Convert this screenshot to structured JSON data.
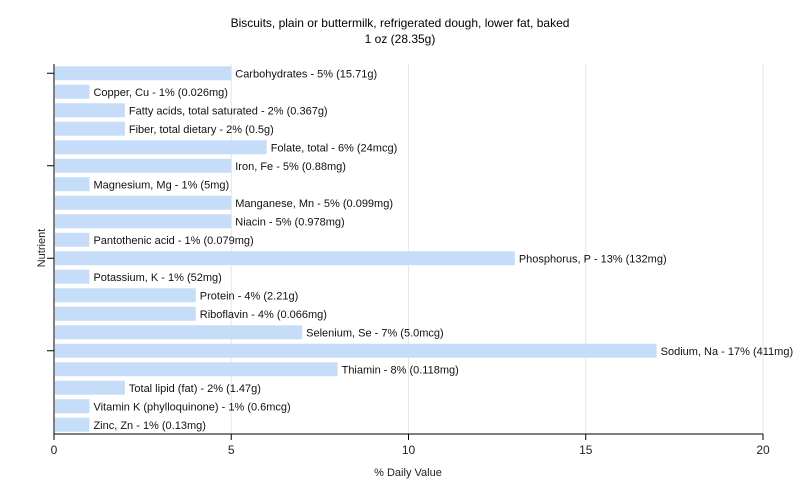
{
  "chart_data": {
    "type": "bar",
    "orientation": "horizontal",
    "title": "Biscuits, plain or buttermilk, refrigerated dough, lower fat, baked",
    "subtitle": "1 oz (28.35g)",
    "xlabel": "% Daily Value",
    "ylabel": "Nutrient",
    "xlim": [
      0,
      20
    ],
    "xticks": [
      0,
      5,
      10,
      15,
      20
    ],
    "grid": true,
    "bar_color": "#c6ddfa",
    "categories": [
      "Carbohydrates",
      "Copper, Cu",
      "Fatty acids, total saturated",
      "Fiber, total dietary",
      "Folate, total",
      "Iron, Fe",
      "Magnesium, Mg",
      "Manganese, Mn",
      "Niacin",
      "Pantothenic acid",
      "Phosphorus, P",
      "Potassium, K",
      "Protein",
      "Riboflavin",
      "Selenium, Se",
      "Sodium, Na",
      "Thiamin",
      "Total lipid (fat)",
      "Vitamin K (phylloquinone)",
      "Zinc, Zn"
    ],
    "values": [
      5,
      1,
      2,
      2,
      6,
      5,
      1,
      5,
      5,
      1,
      13,
      1,
      4,
      4,
      7,
      17,
      8,
      2,
      1,
      1
    ],
    "labels": [
      "Carbohydrates - 5% (15.71g)",
      "Copper, Cu - 1% (0.026mg)",
      "Fatty acids, total saturated - 2% (0.367g)",
      "Fiber, total dietary - 2% (0.5g)",
      "Folate, total - 6% (24mcg)",
      "Iron, Fe - 5% (0.88mg)",
      "Magnesium, Mg - 1% (5mg)",
      "Manganese, Mn - 5% (0.099mg)",
      "Niacin - 5% (0.978mg)",
      "Pantothenic acid - 1% (0.079mg)",
      "Phosphorus, P - 13% (132mg)",
      "Potassium, K - 1% (52mg)",
      "Protein - 4% (2.21g)",
      "Riboflavin - 4% (0.066mg)",
      "Selenium, Se - 7% (5.0mcg)",
      "Sodium, Na - 17% (411mg)",
      "Thiamin - 8% (0.118mg)",
      "Total lipid (fat) - 2% (1.47g)",
      "Vitamin K (phylloquinone) - 1% (0.6mcg)",
      "Zinc, Zn - 1% (0.13mg)"
    ]
  }
}
